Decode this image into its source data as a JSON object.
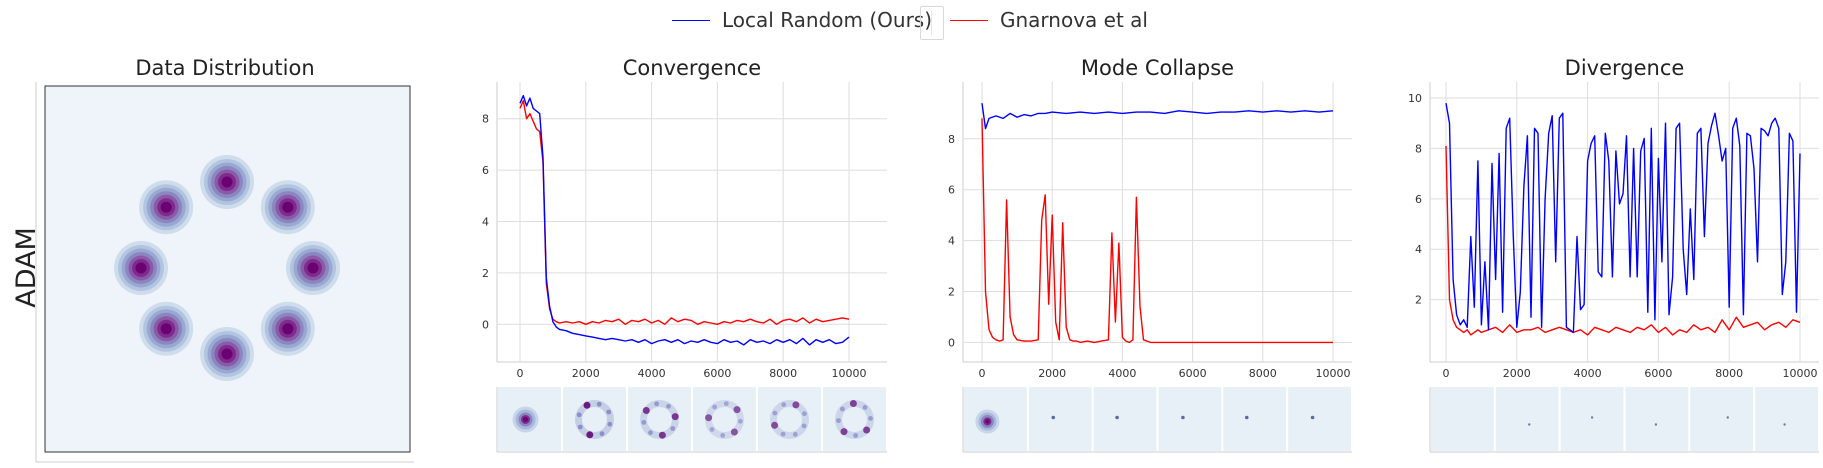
{
  "legend": {
    "items": [
      {
        "label": "Local Random (Ours)",
        "color": "#0000ff"
      },
      {
        "label": "Gnarnova et al",
        "color": "#ff0000"
      }
    ]
  },
  "row_label": "ADAM",
  "panels": [
    {
      "title": "Data Distribution"
    },
    {
      "title": "Convergence"
    },
    {
      "title": "Mode Collapse"
    },
    {
      "title": "Divergence"
    }
  ],
  "chart_data": [
    {
      "type": "heatmap",
      "title": "Data Distribution",
      "description_free": true,
      "modes": 8,
      "colormap": [
        "#eef4f9",
        "#cfdcec",
        "#b1c4e0",
        "#9aa7d2",
        "#8a86bf",
        "#8a5aa7",
        "#7f2a8e",
        "#6a0272"
      ]
    },
    {
      "type": "line",
      "title": "Convergence",
      "xlim": [
        0,
        10000
      ],
      "ylim": [
        -1,
        9
      ],
      "x_ticks": [
        0,
        2000,
        4000,
        6000,
        8000,
        10000
      ],
      "y_ticks": [
        0,
        2,
        4,
        6,
        8
      ],
      "series": [
        {
          "name": "Local Random (Ours)",
          "color": "#0000ff",
          "x": [
            0,
            100,
            200,
            300,
            400,
            500,
            600,
            700,
            800,
            900,
            1000,
            1100,
            1200,
            1400,
            1600,
            1800,
            2000,
            2200,
            2400,
            2600,
            2800,
            3000,
            3200,
            3400,
            3600,
            3800,
            4000,
            4200,
            4400,
            4600,
            4800,
            5000,
            5200,
            5400,
            5600,
            5800,
            6000,
            6200,
            6400,
            6600,
            6800,
            7000,
            7200,
            7400,
            7600,
            7800,
            8000,
            8200,
            8400,
            8600,
            8800,
            9000,
            9200,
            9400,
            9600,
            9800,
            10000
          ],
          "y": [
            8.6,
            8.9,
            8.5,
            8.8,
            8.4,
            8.3,
            8.2,
            6.5,
            1.8,
            0.7,
            0.1,
            -0.1,
            -0.2,
            -0.25,
            -0.35,
            -0.4,
            -0.45,
            -0.5,
            -0.55,
            -0.6,
            -0.55,
            -0.6,
            -0.65,
            -0.6,
            -0.7,
            -0.6,
            -0.75,
            -0.65,
            -0.6,
            -0.7,
            -0.6,
            -0.75,
            -0.65,
            -0.7,
            -0.6,
            -0.7,
            -0.75,
            -0.6,
            -0.7,
            -0.65,
            -0.8,
            -0.6,
            -0.7,
            -0.65,
            -0.75,
            -0.6,
            -0.7,
            -0.6,
            -0.75,
            -0.55,
            -0.8,
            -0.6,
            -0.7,
            -0.6,
            -0.75,
            -0.7,
            -0.5
          ]
        },
        {
          "name": "Gnarnova et al",
          "color": "#ff0000",
          "x": [
            0,
            100,
            200,
            300,
            400,
            500,
            600,
            700,
            800,
            900,
            1000,
            1100,
            1200,
            1400,
            1600,
            1800,
            2000,
            2200,
            2400,
            2600,
            2800,
            3000,
            3200,
            3400,
            3600,
            3800,
            4000,
            4200,
            4400,
            4600,
            4800,
            5000,
            5200,
            5400,
            5600,
            5800,
            6000,
            6200,
            6400,
            6600,
            6800,
            7000,
            7200,
            7400,
            7600,
            7800,
            8000,
            8200,
            8400,
            8600,
            8800,
            9000,
            9200,
            9400,
            9600,
            9800,
            10000
          ],
          "y": [
            8.4,
            8.7,
            8.0,
            8.2,
            7.9,
            7.6,
            7.5,
            6.3,
            1.6,
            0.6,
            0.2,
            0.1,
            0.05,
            0.1,
            0.05,
            0.1,
            0.0,
            0.1,
            0.05,
            0.15,
            0.1,
            0.2,
            0.0,
            0.15,
            0.1,
            0.2,
            0.05,
            0.15,
            0.0,
            0.25,
            0.1,
            0.2,
            0.15,
            0.0,
            0.1,
            0.05,
            0.0,
            0.1,
            0.05,
            0.15,
            0.1,
            0.2,
            0.1,
            0.05,
            0.2,
            0.0,
            0.15,
            0.2,
            0.1,
            0.25,
            0.05,
            0.2,
            0.1,
            0.15,
            0.2,
            0.25,
            0.2
          ]
        }
      ],
      "snapshots": 6
    },
    {
      "type": "line",
      "title": "Mode Collapse",
      "xlim": [
        0,
        10000
      ],
      "ylim": [
        -0.3,
        9.8
      ],
      "x_ticks": [
        0,
        2000,
        4000,
        6000,
        8000,
        10000
      ],
      "y_ticks": [
        0,
        2,
        4,
        6,
        8
      ],
      "series": [
        {
          "name": "Local Random (Ours)",
          "color": "#0000ff",
          "x": [
            0,
            100,
            200,
            400,
            600,
            800,
            1000,
            1200,
            1400,
            1600,
            1800,
            2000,
            2400,
            2800,
            3200,
            3600,
            4000,
            4400,
            4800,
            5200,
            5600,
            6000,
            6400,
            6800,
            7200,
            7600,
            8000,
            8400,
            8800,
            9200,
            9600,
            10000
          ],
          "y": [
            9.4,
            8.4,
            8.8,
            8.9,
            8.8,
            9.0,
            8.85,
            8.95,
            8.9,
            9.0,
            9.0,
            9.05,
            9.0,
            9.05,
            9.0,
            9.05,
            9.0,
            9.05,
            9.05,
            9.0,
            9.1,
            9.05,
            9.0,
            9.05,
            9.05,
            9.1,
            9.05,
            9.1,
            9.05,
            9.1,
            9.05,
            9.1
          ]
        },
        {
          "name": "Gnarnova et al",
          "color": "#ff0000",
          "x": [
            0,
            100,
            200,
            300,
            400,
            500,
            600,
            700,
            800,
            900,
            1000,
            1200,
            1400,
            1600,
            1700,
            1800,
            1900,
            2000,
            2100,
            2200,
            2300,
            2400,
            2500,
            2600,
            2700,
            2800,
            3000,
            3200,
            3400,
            3600,
            3700,
            3800,
            3900,
            4000,
            4100,
            4200,
            4300,
            4400,
            4500,
            4600,
            4700,
            4800,
            5000,
            6000,
            7000,
            8000,
            9000,
            10000
          ],
          "y": [
            8.8,
            2.0,
            0.5,
            0.2,
            0.1,
            0.05,
            0.1,
            5.6,
            1.0,
            0.3,
            0.1,
            0.05,
            0.05,
            0.1,
            4.8,
            5.8,
            1.5,
            5.0,
            0.8,
            0.1,
            4.7,
            0.6,
            0.1,
            0.05,
            0.05,
            0.0,
            0.05,
            0.0,
            0.05,
            0.1,
            4.3,
            0.8,
            3.9,
            0.2,
            0.05,
            0.0,
            0.1,
            5.7,
            1.4,
            0.1,
            0.05,
            0.0,
            0.0,
            0.0,
            0.0,
            0.0,
            0.0,
            0.0
          ]
        }
      ],
      "snapshots": 6
    },
    {
      "type": "line",
      "title": "Divergence",
      "xlim": [
        0,
        10000
      ],
      "ylim": [
        0,
        10.2
      ],
      "x_ticks": [
        0,
        2000,
        4000,
        6000,
        8000,
        10000
      ],
      "y_ticks": [
        2,
        4,
        6,
        8,
        10
      ],
      "series": [
        {
          "name": "Local Random (Ours)",
          "color": "#0000ff",
          "x": [
            0,
            100,
            200,
            300,
            400,
            500,
            600,
            700,
            800,
            900,
            1000,
            1100,
            1200,
            1300,
            1400,
            1500,
            1600,
            1700,
            1800,
            1900,
            2000,
            2100,
            2200,
            2300,
            2400,
            2500,
            2600,
            2700,
            2800,
            2900,
            3000,
            3100,
            3200,
            3300,
            3400,
            3500,
            3600,
            3700,
            3800,
            3900,
            4000,
            4100,
            4200,
            4300,
            4400,
            4500,
            4600,
            4700,
            4800,
            4900,
            5000,
            5100,
            5200,
            5300,
            5400,
            5500,
            5600,
            5700,
            5800,
            5900,
            6000,
            6100,
            6200,
            6300,
            6400,
            6500,
            6600,
            6700,
            6800,
            6900,
            7000,
            7100,
            7200,
            7300,
            7400,
            7500,
            7600,
            7700,
            7800,
            7900,
            8000,
            8100,
            8200,
            8300,
            8400,
            8500,
            8600,
            8700,
            8800,
            8900,
            9000,
            9100,
            9200,
            9300,
            9400,
            9500,
            9600,
            9700,
            9800,
            9900,
            10000
          ],
          "y": [
            9.8,
            9.0,
            2.8,
            1.4,
            1.0,
            1.2,
            0.9,
            4.5,
            1.7,
            7.5,
            1.0,
            3.5,
            0.8,
            7.4,
            2.8,
            7.8,
            1.5,
            8.8,
            9.2,
            4.5,
            0.9,
            2.3,
            6.5,
            8.5,
            1.3,
            8.8,
            8.6,
            0.9,
            6.0,
            8.6,
            9.3,
            3.5,
            9.2,
            9.4,
            0.9,
            0.8,
            0.7,
            4.5,
            1.6,
            1.8,
            7.5,
            8.2,
            8.5,
            3.1,
            2.9,
            8.6,
            7.5,
            2.9,
            7.9,
            5.8,
            6.2,
            8.5,
            2.9,
            8.0,
            2.9,
            7.9,
            8.4,
            1.5,
            8.8,
            1.2,
            7.6,
            3.5,
            9.0,
            1.4,
            2.9,
            8.8,
            9.0,
            4.0,
            2.2,
            5.6,
            2.8,
            8.6,
            8.8,
            4.5,
            8.2,
            8.9,
            9.4,
            8.5,
            7.5,
            8.0,
            1.7,
            8.8,
            9.2,
            8.1,
            1.4,
            8.6,
            8.5,
            7.2,
            3.5,
            8.8,
            8.7,
            8.5,
            9.0,
            9.2,
            8.8,
            2.2,
            3.5,
            8.6,
            8.3,
            1.5,
            7.8
          ]
        },
        {
          "name": "Gnarnova et al",
          "color": "#ff0000",
          "x": [
            0,
            100,
            200,
            300,
            400,
            500,
            600,
            700,
            800,
            900,
            1000,
            1200,
            1400,
            1600,
            1800,
            2000,
            2200,
            2400,
            2600,
            2800,
            3000,
            3200,
            3400,
            3600,
            3800,
            4000,
            4200,
            4400,
            4600,
            4800,
            5000,
            5200,
            5400,
            5600,
            5800,
            6000,
            6200,
            6400,
            6600,
            6800,
            7000,
            7200,
            7400,
            7600,
            7800,
            8000,
            8200,
            8400,
            8600,
            8800,
            9000,
            9200,
            9400,
            9600,
            9800,
            10000
          ],
          "y": [
            8.1,
            2.0,
            1.2,
            0.9,
            0.8,
            0.7,
            0.8,
            0.6,
            0.7,
            0.8,
            0.7,
            0.8,
            0.9,
            0.7,
            1.0,
            0.7,
            0.8,
            0.8,
            0.9,
            0.7,
            0.8,
            0.9,
            0.8,
            0.7,
            0.8,
            0.6,
            0.9,
            0.8,
            0.7,
            0.9,
            0.8,
            0.7,
            0.9,
            0.8,
            1.0,
            0.7,
            0.9,
            0.6,
            0.8,
            0.7,
            1.0,
            0.8,
            0.9,
            0.7,
            1.2,
            0.8,
            1.3,
            0.9,
            1.0,
            1.1,
            0.8,
            1.0,
            1.1,
            0.9,
            1.2,
            1.1
          ]
        }
      ],
      "snapshots": 6
    }
  ]
}
